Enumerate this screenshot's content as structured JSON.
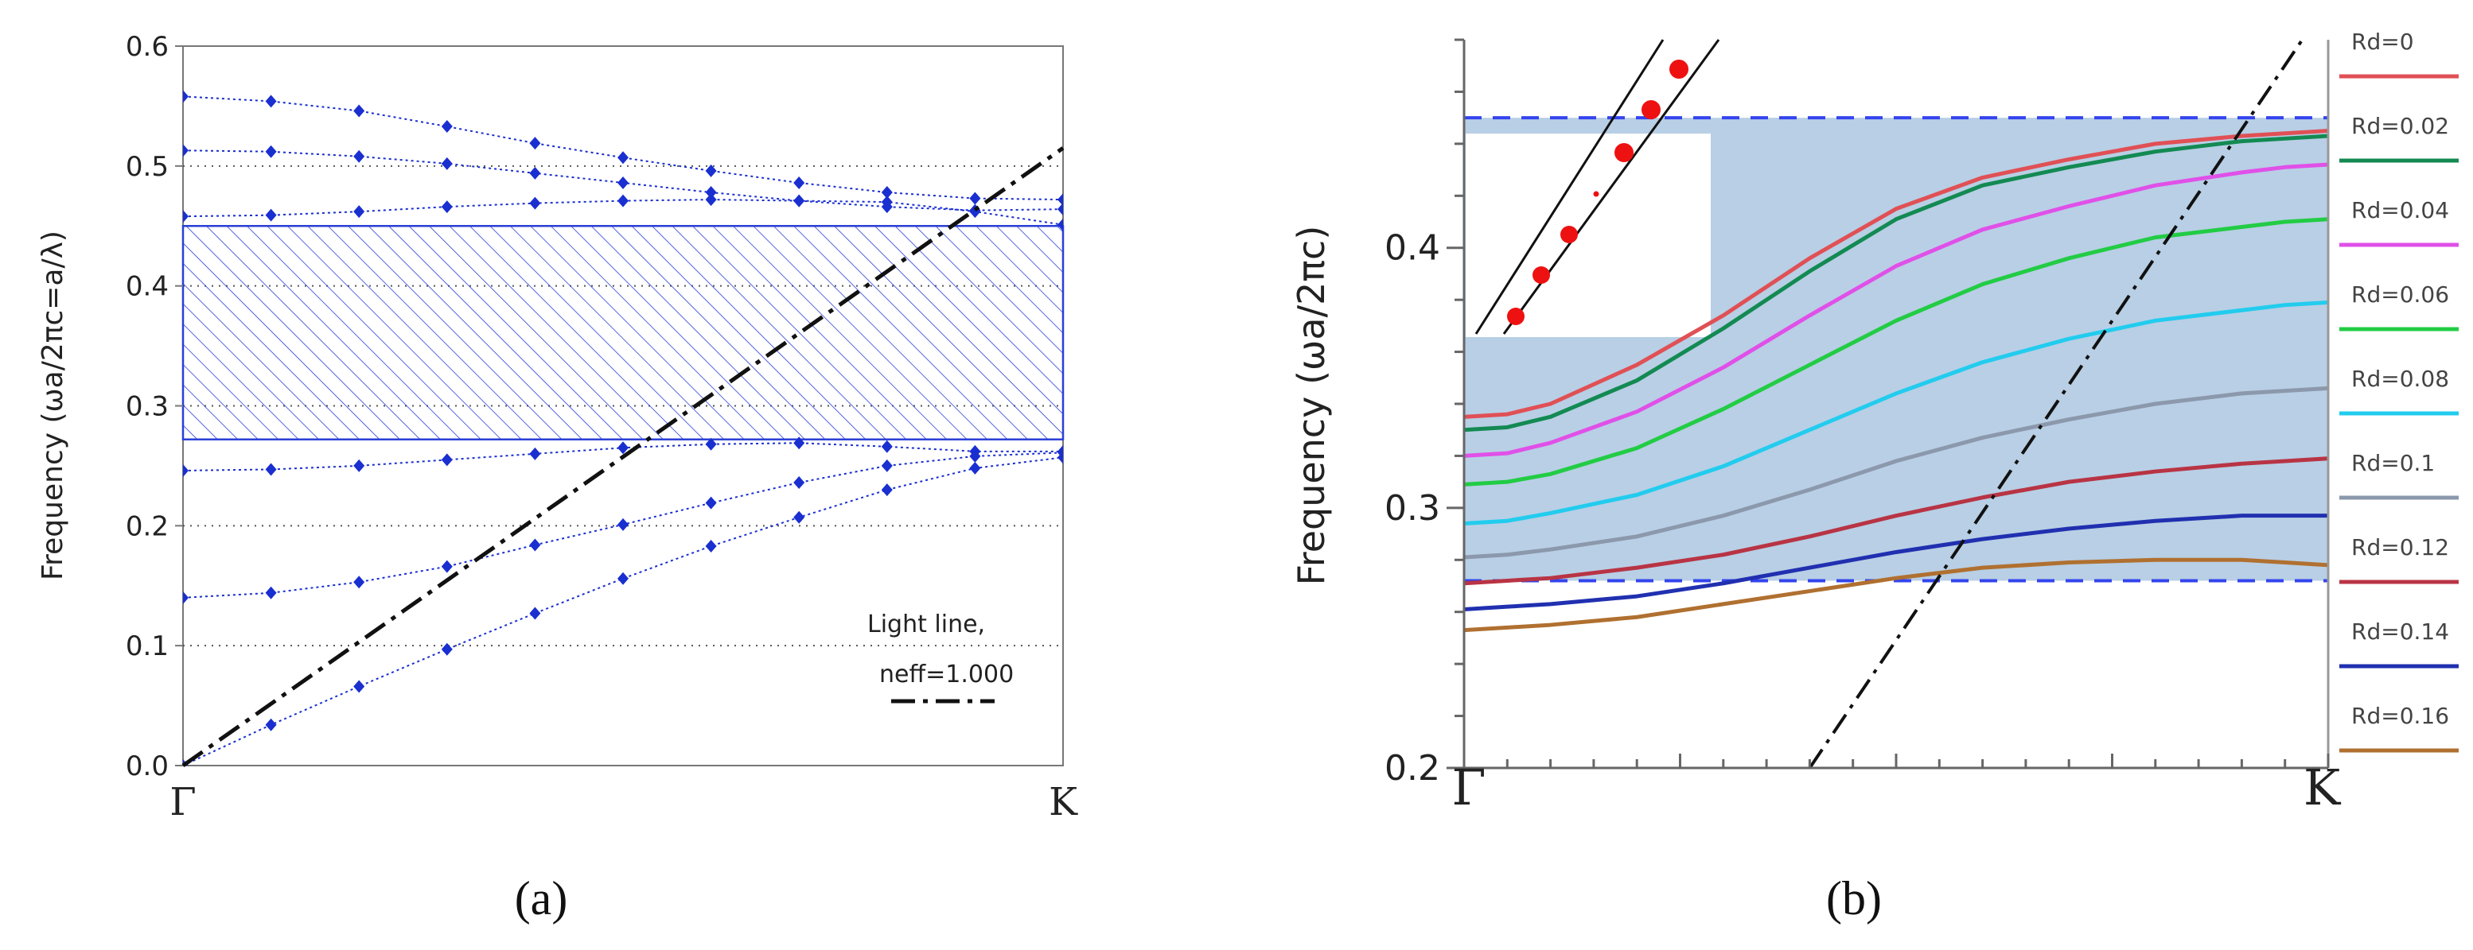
{
  "chart_data": [
    {
      "panel": "(a)",
      "type": "scatter",
      "ylabel": "Frequency (ωa/2πc=a/λ)",
      "xlabel": "",
      "x_tick_labels": [
        "Γ",
        "K"
      ],
      "xlim": [
        0,
        1
      ],
      "ylim": [
        0,
        0.6
      ],
      "y_ticks": [
        "0.0",
        "0.1",
        "0.2",
        "0.3",
        "0.4",
        "0.5",
        "0.6"
      ],
      "grid": "dotted horizontal",
      "band_gap": {
        "from": 0.272,
        "to": 0.45,
        "fill": "hatched",
        "color": "#2b3fd6"
      },
      "x": [
        0,
        0.1,
        0.2,
        0.3,
        0.4,
        0.5,
        0.6,
        0.7,
        0.8,
        0.9,
        1.0
      ],
      "series": [
        {
          "values": [
            0,
            0.034,
            0.066,
            0.097,
            0.127,
            0.156,
            0.183,
            0.207,
            0.23,
            0.248,
            0.257
          ]
        },
        {
          "values": [
            0.14,
            0.144,
            0.153,
            0.166,
            0.184,
            0.201,
            0.219,
            0.236,
            0.25,
            0.258,
            0.261
          ]
        },
        {
          "values": [
            0.246,
            0.247,
            0.25,
            0.255,
            0.26,
            0.265,
            0.268,
            0.269,
            0.266,
            0.262,
            0.262
          ]
        },
        {
          "values": [
            0.458,
            0.459,
            0.462,
            0.466,
            0.469,
            0.471,
            0.472,
            0.471,
            0.47,
            0.462,
            0.451
          ]
        },
        {
          "values": [
            0.513,
            0.512,
            0.508,
            0.502,
            0.494,
            0.486,
            0.478,
            0.471,
            0.466,
            0.463,
            0.464
          ]
        },
        {
          "values": [
            0.558,
            0.554,
            0.546,
            0.533,
            0.519,
            0.507,
            0.496,
            0.486,
            0.478,
            0.473,
            0.472
          ]
        }
      ],
      "light_line": {
        "x": [
          0,
          1
        ],
        "y": [
          0,
          0.515
        ],
        "label_line1": "Light line,",
        "label_line2": "neff=1.000"
      },
      "marker_color": "#1a2fd0"
    },
    {
      "panel": "(b)",
      "type": "line",
      "ylabel": "Frequency (ωa/2πc)",
      "xlabel": "",
      "x_tick_labels": [
        "Γ",
        "K"
      ],
      "xlim": [
        0,
        1
      ],
      "ylim": [
        0.2,
        0.48
      ],
      "y_ticks": [
        "0.2",
        "0.3",
        "0.4"
      ],
      "band_gap": {
        "from": 0.272,
        "to": 0.45,
        "fill_color": "#b8cfe5",
        "dash_color": "#3344ee"
      },
      "light_line": {
        "x": [
          0.4,
          0.97
        ],
        "y": [
          0.2,
          0.48
        ]
      },
      "x": [
        0,
        0.05,
        0.1,
        0.2,
        0.3,
        0.4,
        0.5,
        0.6,
        0.7,
        0.8,
        0.9,
        0.95,
        1.0
      ],
      "series": [
        {
          "name": "Rd=0",
          "color": "#e05055",
          "values": [
            0.335,
            0.336,
            0.34,
            0.355,
            0.374,
            0.396,
            0.415,
            0.427,
            0.434,
            0.44,
            0.443,
            0.444,
            0.445
          ]
        },
        {
          "name": "Rd=0.02",
          "color": "#138a52",
          "values": [
            0.33,
            0.331,
            0.335,
            0.349,
            0.369,
            0.391,
            0.411,
            0.424,
            0.431,
            0.437,
            0.441,
            0.442,
            0.443
          ]
        },
        {
          "name": "Rd=0.04",
          "color": "#e050e8",
          "values": [
            0.32,
            0.321,
            0.325,
            0.337,
            0.354,
            0.374,
            0.393,
            0.407,
            0.416,
            0.424,
            0.429,
            0.431,
            0.432
          ]
        },
        {
          "name": "Rd=0.06",
          "color": "#22cc44",
          "values": [
            0.309,
            0.31,
            0.313,
            0.323,
            0.338,
            0.355,
            0.372,
            0.386,
            0.396,
            0.404,
            0.408,
            0.41,
            0.411
          ]
        },
        {
          "name": "Rd=0.08",
          "color": "#22ccee",
          "values": [
            0.294,
            0.295,
            0.298,
            0.305,
            0.316,
            0.33,
            0.344,
            0.356,
            0.365,
            0.372,
            0.376,
            0.378,
            0.379
          ]
        },
        {
          "name": "Rd=0.1",
          "color": "#8c98ac",
          "values": [
            0.281,
            0.282,
            0.284,
            0.289,
            0.297,
            0.307,
            0.318,
            0.327,
            0.334,
            0.34,
            0.344,
            0.345,
            0.346
          ]
        },
        {
          "name": "Rd=0.12",
          "color": "#b83444",
          "values": [
            0.271,
            0.272,
            0.273,
            0.277,
            0.282,
            0.289,
            0.297,
            0.304,
            0.31,
            0.314,
            0.317,
            0.318,
            0.319
          ]
        },
        {
          "name": "Rd=0.14",
          "color": "#2030b0",
          "values": [
            0.261,
            0.262,
            0.263,
            0.266,
            0.271,
            0.277,
            0.283,
            0.288,
            0.292,
            0.295,
            0.297,
            0.297,
            0.297
          ]
        },
        {
          "name": "Rd=0.16",
          "color": "#b07030",
          "values": [
            0.253,
            0.254,
            0.255,
            0.258,
            0.263,
            0.268,
            0.273,
            0.277,
            0.279,
            0.28,
            0.28,
            0.279,
            0.278
          ]
        }
      ]
    }
  ],
  "panel_labels": {
    "a": "(a)",
    "b": "(b)"
  },
  "colors": {
    "text": "#222222",
    "axis": "#444444",
    "grid": "#555555",
    "light_line": "#111111",
    "inset_dots": "#ee1111"
  }
}
